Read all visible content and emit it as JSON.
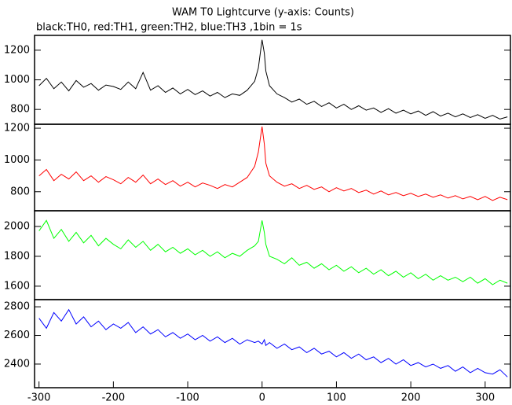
{
  "chart_data": {
    "type": "line",
    "title": "WAM T0 Lightcurve (y-axis: Counts)",
    "subtitle": "black:TH0, red:TH1, green:TH2, blue:TH3 ,1bin = 1s",
    "x": [
      -300,
      -290,
      -280,
      -270,
      -260,
      -250,
      -240,
      -230,
      -220,
      -210,
      -200,
      -190,
      -180,
      -170,
      -160,
      -150,
      -140,
      -130,
      -120,
      -110,
      -100,
      -90,
      -80,
      -70,
      -60,
      -50,
      -40,
      -30,
      -20,
      -10,
      -5,
      0,
      3,
      5,
      10,
      20,
      30,
      40,
      50,
      60,
      70,
      80,
      90,
      100,
      110,
      120,
      130,
      140,
      150,
      160,
      170,
      180,
      190,
      200,
      210,
      220,
      230,
      240,
      250,
      260,
      270,
      280,
      290,
      300,
      310,
      320,
      330
    ],
    "xlim": [
      -306,
      334
    ],
    "xticks": [
      -300,
      -200,
      -100,
      0,
      100,
      200,
      300
    ],
    "panels": [
      {
        "color": "#000000",
        "ylim": [
          700,
          1300
        ],
        "yticks": [
          800,
          1000,
          1200
        ],
        "values": [
          960,
          1010,
          940,
          985,
          925,
          995,
          950,
          975,
          930,
          965,
          955,
          935,
          985,
          940,
          1050,
          930,
          960,
          915,
          945,
          905,
          935,
          900,
          925,
          890,
          915,
          880,
          905,
          895,
          930,
          990,
          1080,
          1270,
          1180,
          1060,
          960,
          905,
          880,
          850,
          870,
          835,
          855,
          820,
          845,
          810,
          835,
          800,
          825,
          795,
          810,
          780,
          805,
          775,
          795,
          770,
          790,
          760,
          785,
          755,
          775,
          750,
          770,
          745,
          765,
          740,
          760,
          735,
          750
        ]
      },
      {
        "color": "#ff0000",
        "ylim": [
          680,
          1225
        ],
        "yticks": [
          800,
          1000,
          1200
        ],
        "values": [
          900,
          940,
          870,
          910,
          880,
          925,
          870,
          900,
          860,
          895,
          875,
          850,
          890,
          860,
          905,
          850,
          880,
          845,
          870,
          835,
          860,
          830,
          855,
          840,
          820,
          845,
          830,
          860,
          890,
          960,
          1050,
          1210,
          1100,
          980,
          900,
          860,
          835,
          850,
          820,
          840,
          815,
          830,
          800,
          825,
          805,
          820,
          795,
          810,
          785,
          805,
          780,
          795,
          775,
          790,
          770,
          785,
          765,
          780,
          760,
          775,
          755,
          770,
          750,
          770,
          745,
          765,
          750
        ]
      },
      {
        "color": "#00ff00",
        "ylim": [
          1510,
          2105
        ],
        "yticks": [
          1600,
          1800,
          2000
        ],
        "values": [
          1970,
          2040,
          1920,
          1980,
          1900,
          1960,
          1890,
          1940,
          1870,
          1920,
          1880,
          1850,
          1910,
          1860,
          1900,
          1840,
          1880,
          1830,
          1860,
          1820,
          1850,
          1810,
          1840,
          1800,
          1830,
          1790,
          1820,
          1800,
          1840,
          1870,
          1900,
          2040,
          1960,
          1880,
          1800,
          1780,
          1750,
          1790,
          1740,
          1760,
          1720,
          1750,
          1710,
          1740,
          1700,
          1730,
          1690,
          1720,
          1680,
          1710,
          1670,
          1700,
          1660,
          1690,
          1650,
          1680,
          1640,
          1670,
          1640,
          1660,
          1630,
          1660,
          1620,
          1650,
          1610,
          1640,
          1620
        ]
      },
      {
        "color": "#0000ff",
        "ylim": [
          2235,
          2850
        ],
        "yticks": [
          2400,
          2600,
          2800
        ],
        "values": [
          2720,
          2650,
          2760,
          2700,
          2780,
          2680,
          2730,
          2660,
          2700,
          2640,
          2680,
          2650,
          2690,
          2620,
          2660,
          2610,
          2640,
          2590,
          2620,
          2580,
          2610,
          2570,
          2600,
          2560,
          2590,
          2550,
          2580,
          2540,
          2570,
          2550,
          2560,
          2540,
          2570,
          2530,
          2550,
          2510,
          2540,
          2500,
          2520,
          2480,
          2510,
          2470,
          2490,
          2450,
          2480,
          2440,
          2470,
          2430,
          2450,
          2410,
          2440,
          2400,
          2430,
          2390,
          2410,
          2380,
          2400,
          2370,
          2390,
          2350,
          2380,
          2340,
          2370,
          2340,
          2330,
          2360,
          2310
        ]
      }
    ]
  }
}
